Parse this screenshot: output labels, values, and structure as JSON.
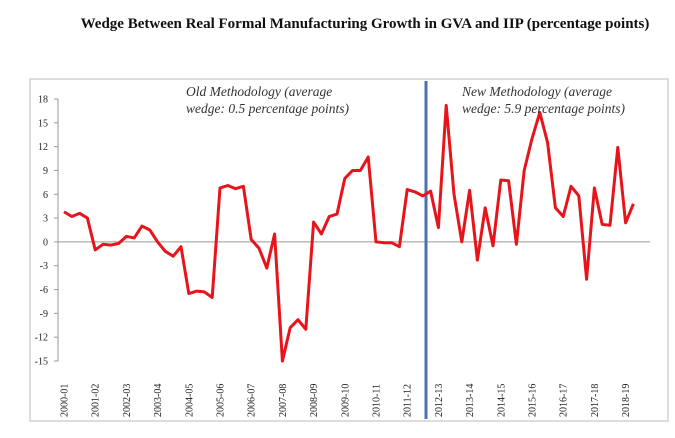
{
  "chart_data": {
    "type": "line",
    "title": "Wedge Between Real Formal Manufacturing Growth in GVA and IIP (percentage points)",
    "categories": [
      "2000-01",
      null,
      null,
      null,
      "2001-02",
      null,
      null,
      null,
      "2002-03",
      null,
      null,
      null,
      "2003-04",
      null,
      null,
      null,
      "2004-05",
      null,
      null,
      null,
      "2005-06",
      null,
      null,
      null,
      "2006-07",
      null,
      null,
      null,
      "2007-08",
      null,
      null,
      null,
      "2008-09",
      null,
      null,
      null,
      "2009-10",
      null,
      null,
      null,
      "2010-11",
      null,
      null,
      null,
      "2011-12",
      null,
      null,
      null,
      "2012-13",
      null,
      null,
      null,
      "2013-14",
      null,
      null,
      null,
      "2014-15",
      null,
      null,
      null,
      "2015-16",
      null,
      null,
      null,
      "2016-17",
      null,
      null,
      null,
      "2017-18",
      null,
      null,
      null,
      "2018-19",
      null
    ],
    "series": [
      {
        "name": "Wedge",
        "color": "#e8141b",
        "values": [
          3.8,
          3.2,
          3.6,
          3.0,
          -1.0,
          -0.3,
          -0.4,
          -0.2,
          0.7,
          0.5,
          2.0,
          1.5,
          0,
          -1.2,
          -1.8,
          -0.6,
          -6.5,
          -6.2,
          -6.3,
          -7.0,
          6.8,
          7.1,
          6.7,
          7.0,
          0.3,
          -0.8,
          -3.3,
          1.0,
          -15,
          -10.8,
          -9.8,
          -11,
          2.5,
          1.0,
          3.2,
          3.5,
          8.0,
          9.0,
          9.0,
          10.7,
          0,
          -0.1,
          -0.1,
          -0.6,
          6.6,
          6.3,
          5.8,
          6.4,
          1.8,
          17.2,
          6,
          0,
          6.5,
          -2.3,
          4.3,
          -0.5,
          7.8,
          7.7,
          -0.3,
          9,
          13,
          16.3,
          12.5,
          4.3,
          3.2,
          7.0,
          5.8,
          -4.7,
          6.8,
          2.2,
          2.1,
          11.9,
          2.4,
          4.8
        ]
      }
    ],
    "ylim": [
      -15,
      18
    ],
    "yticks": [
      -15,
      -12,
      -9,
      -6,
      -3,
      0,
      3,
      6,
      9,
      12,
      15,
      18
    ],
    "annotations": [
      [
        "Old Methodology (average",
        "wedge: 0.5 percentage points)"
      ],
      [
        "New Methodology (average",
        "wedge: 5.9 percentage points)"
      ]
    ]
  }
}
